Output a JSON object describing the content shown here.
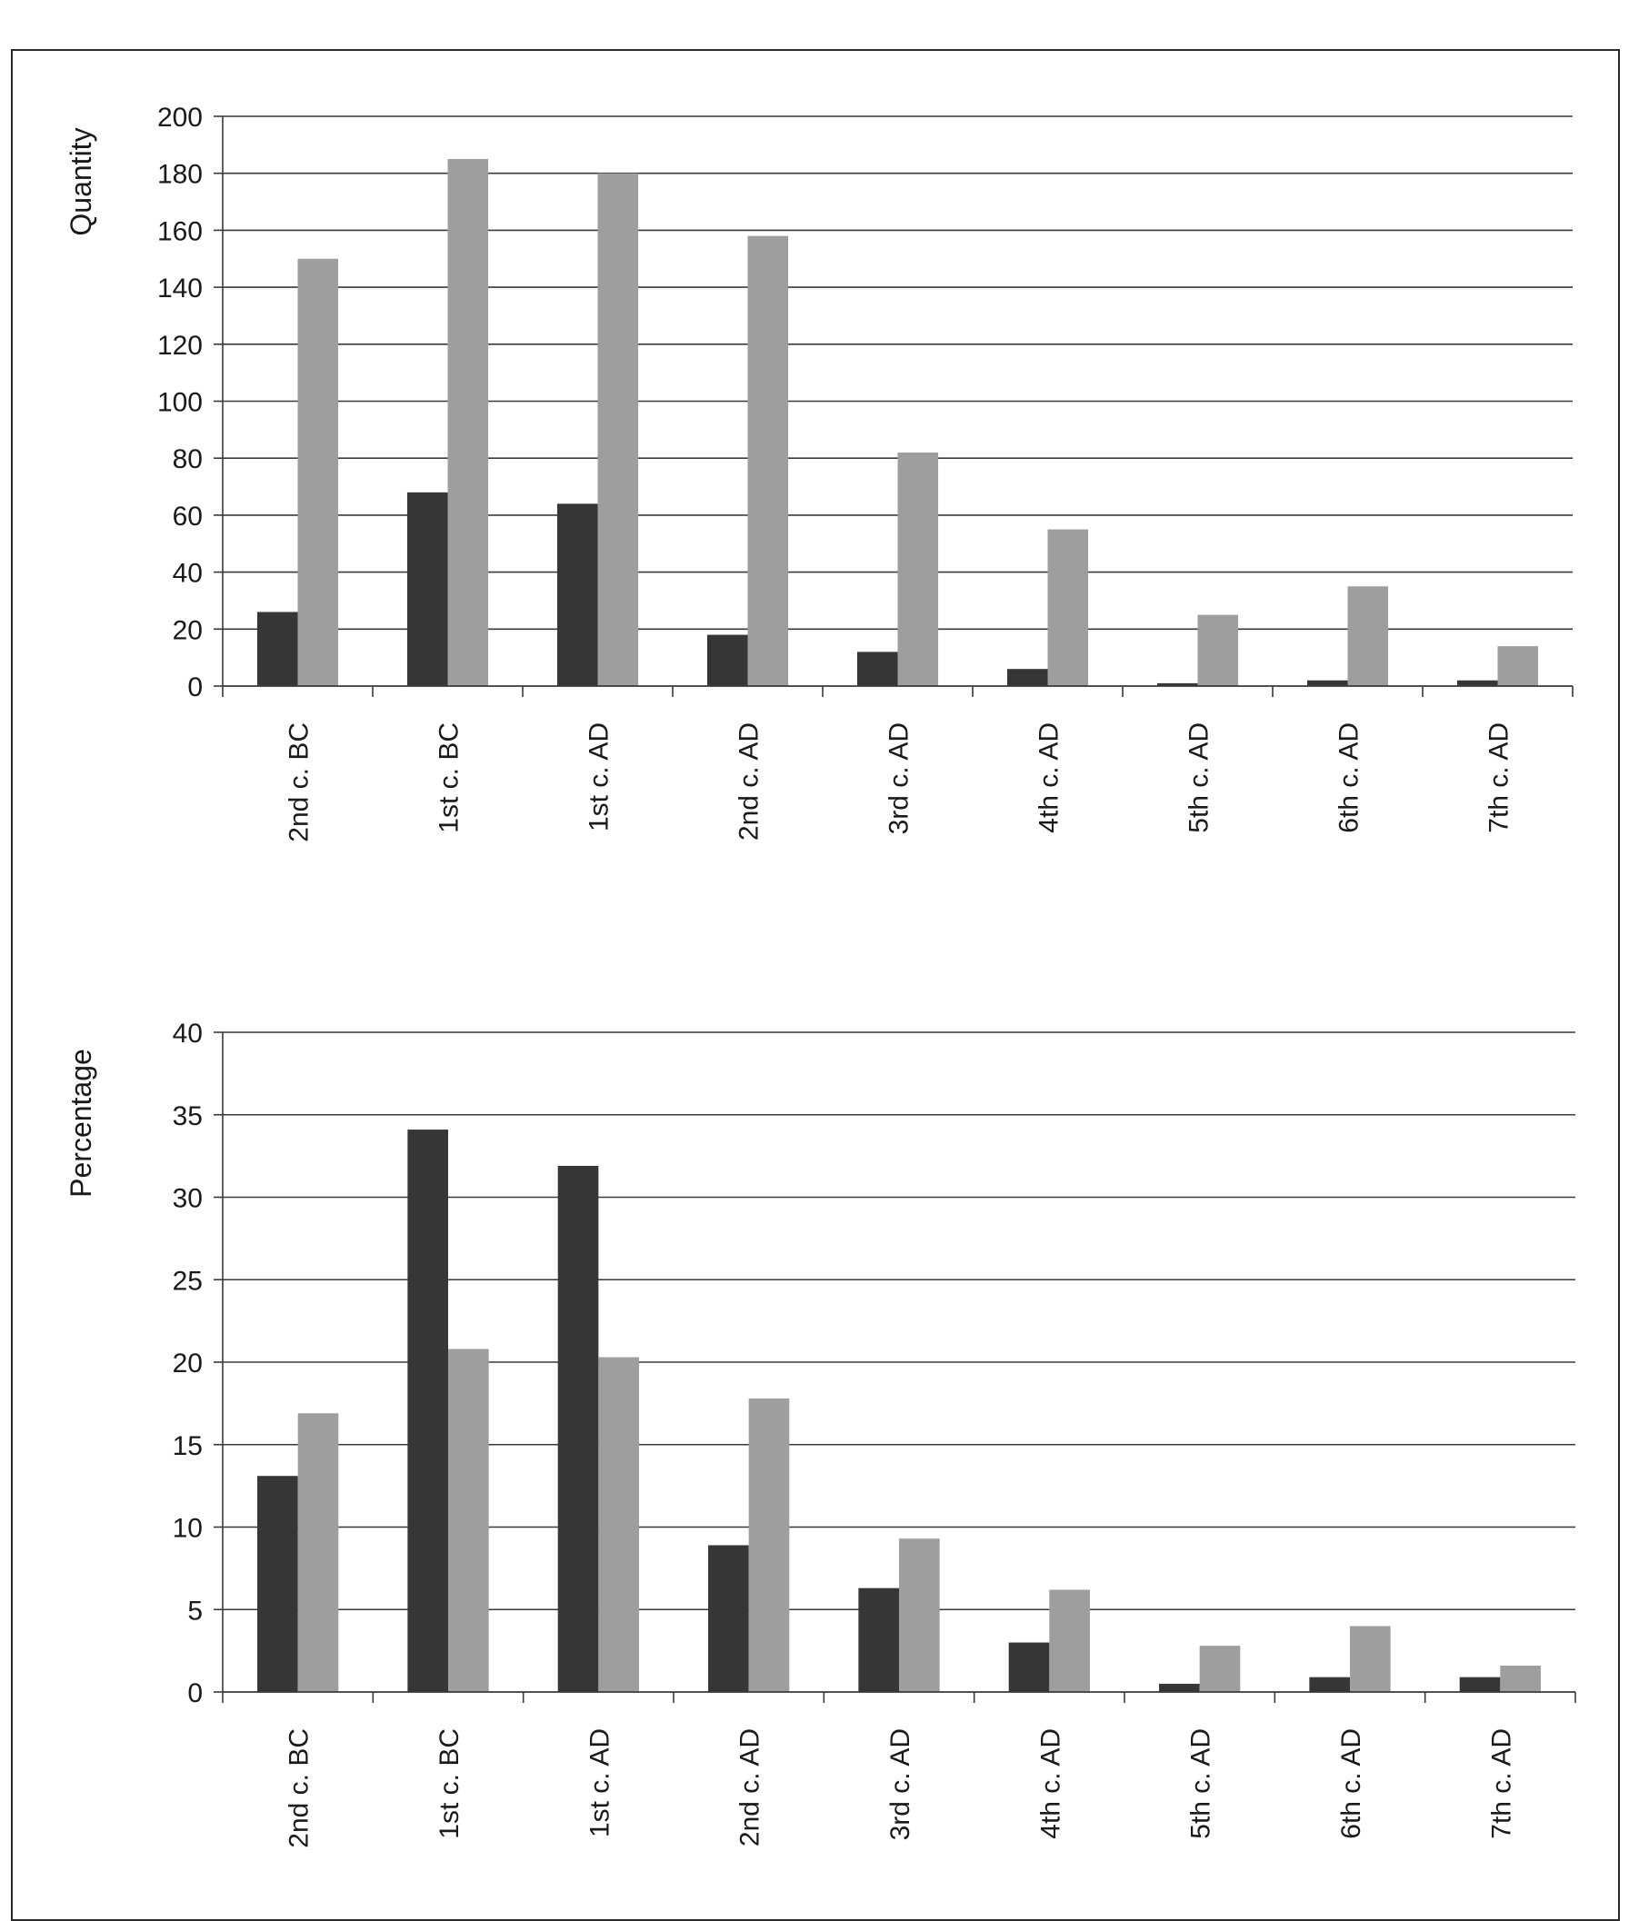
{
  "colors": {
    "series_dark": "#363636",
    "series_light": "#9e9e9e",
    "grid": "#3a3a3a",
    "text": "#1a1a1a"
  },
  "chart_data": [
    {
      "type": "bar",
      "ylabel": "Quantity",
      "ylim": [
        0,
        200
      ],
      "yticks": [
        0,
        20,
        40,
        60,
        80,
        100,
        120,
        140,
        160,
        180,
        200
      ],
      "grid": true,
      "categories": [
        "2nd c. BC",
        "1st c. BC",
        "1st c. AD",
        "2nd c. AD",
        "3rd c. AD",
        "4th c. AD",
        "5th c. AD",
        "6th c. AD",
        "7th c. AD"
      ],
      "series": [
        {
          "values": [
            26,
            68,
            64,
            18,
            12,
            6,
            1,
            2,
            2
          ]
        },
        {
          "values": [
            150,
            185,
            180,
            158,
            82,
            55,
            25,
            35,
            14
          ]
        }
      ]
    },
    {
      "type": "bar",
      "ylabel": "Percentage",
      "ylim": [
        0,
        40
      ],
      "yticks": [
        0,
        5,
        10,
        15,
        20,
        25,
        30,
        35,
        40
      ],
      "grid": true,
      "categories": [
        "2nd c. BC",
        "1st c. BC",
        "1st c. AD",
        "2nd c. AD",
        "3rd c. AD",
        "4th c. AD",
        "5th c. AD",
        "6th c. AD",
        "7th c. AD"
      ],
      "series": [
        {
          "values": [
            13.1,
            34.1,
            31.9,
            8.9,
            6.3,
            3.0,
            0.5,
            0.9,
            0.9
          ]
        },
        {
          "values": [
            16.9,
            20.8,
            20.3,
            17.8,
            9.3,
            6.2,
            2.8,
            4.0,
            1.6
          ]
        }
      ]
    }
  ]
}
